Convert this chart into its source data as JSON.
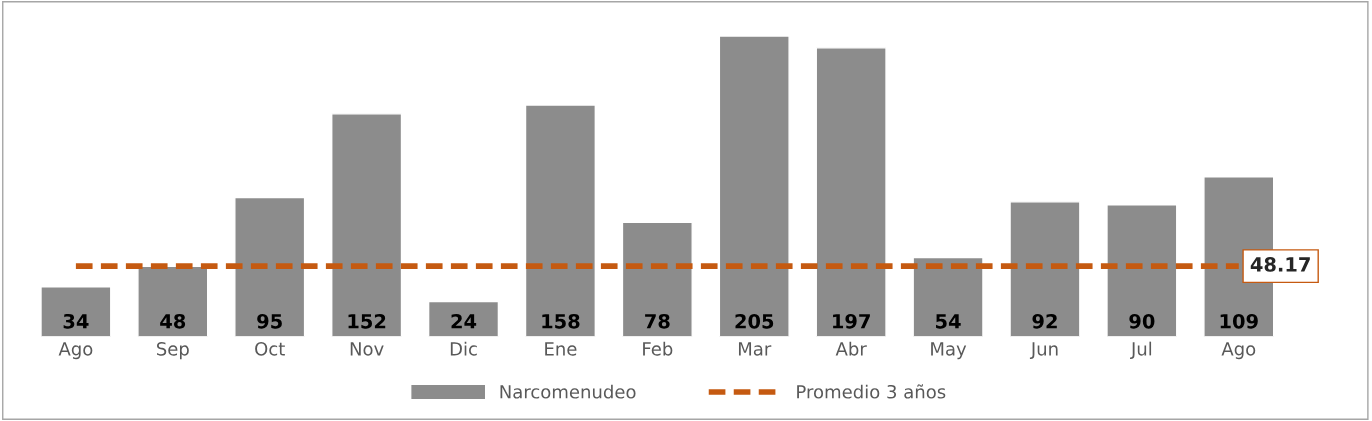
{
  "chart_data": {
    "type": "bar",
    "categories": [
      "Ago",
      "Sep",
      "Oct",
      "Nov",
      "Dic",
      "Ene",
      "Feb",
      "Mar",
      "Abr",
      "May",
      "Jun",
      "Jul",
      "Ago"
    ],
    "series": [
      {
        "name": "Narcomenudeo",
        "color": "#8c8c8c",
        "values": [
          34,
          48,
          95,
          152,
          24,
          158,
          78,
          205,
          197,
          54,
          92,
          90,
          109
        ]
      },
      {
        "name": "Promedio 3 años",
        "type": "line",
        "color": "#c55a11",
        "line_style": "dashed",
        "values": [
          48.17,
          48.17,
          48.17,
          48.17,
          48.17,
          48.17,
          48.17,
          48.17,
          48.17,
          48.17,
          48.17,
          48.17,
          48.17
        ],
        "value_labels": [
          null,
          null,
          null,
          null,
          null,
          null,
          null,
          null,
          null,
          null,
          null,
          null,
          "48.17"
        ]
      }
    ],
    "data_labels": true,
    "legend": "bottom",
    "grid": false,
    "tick_labels": "x"
  }
}
